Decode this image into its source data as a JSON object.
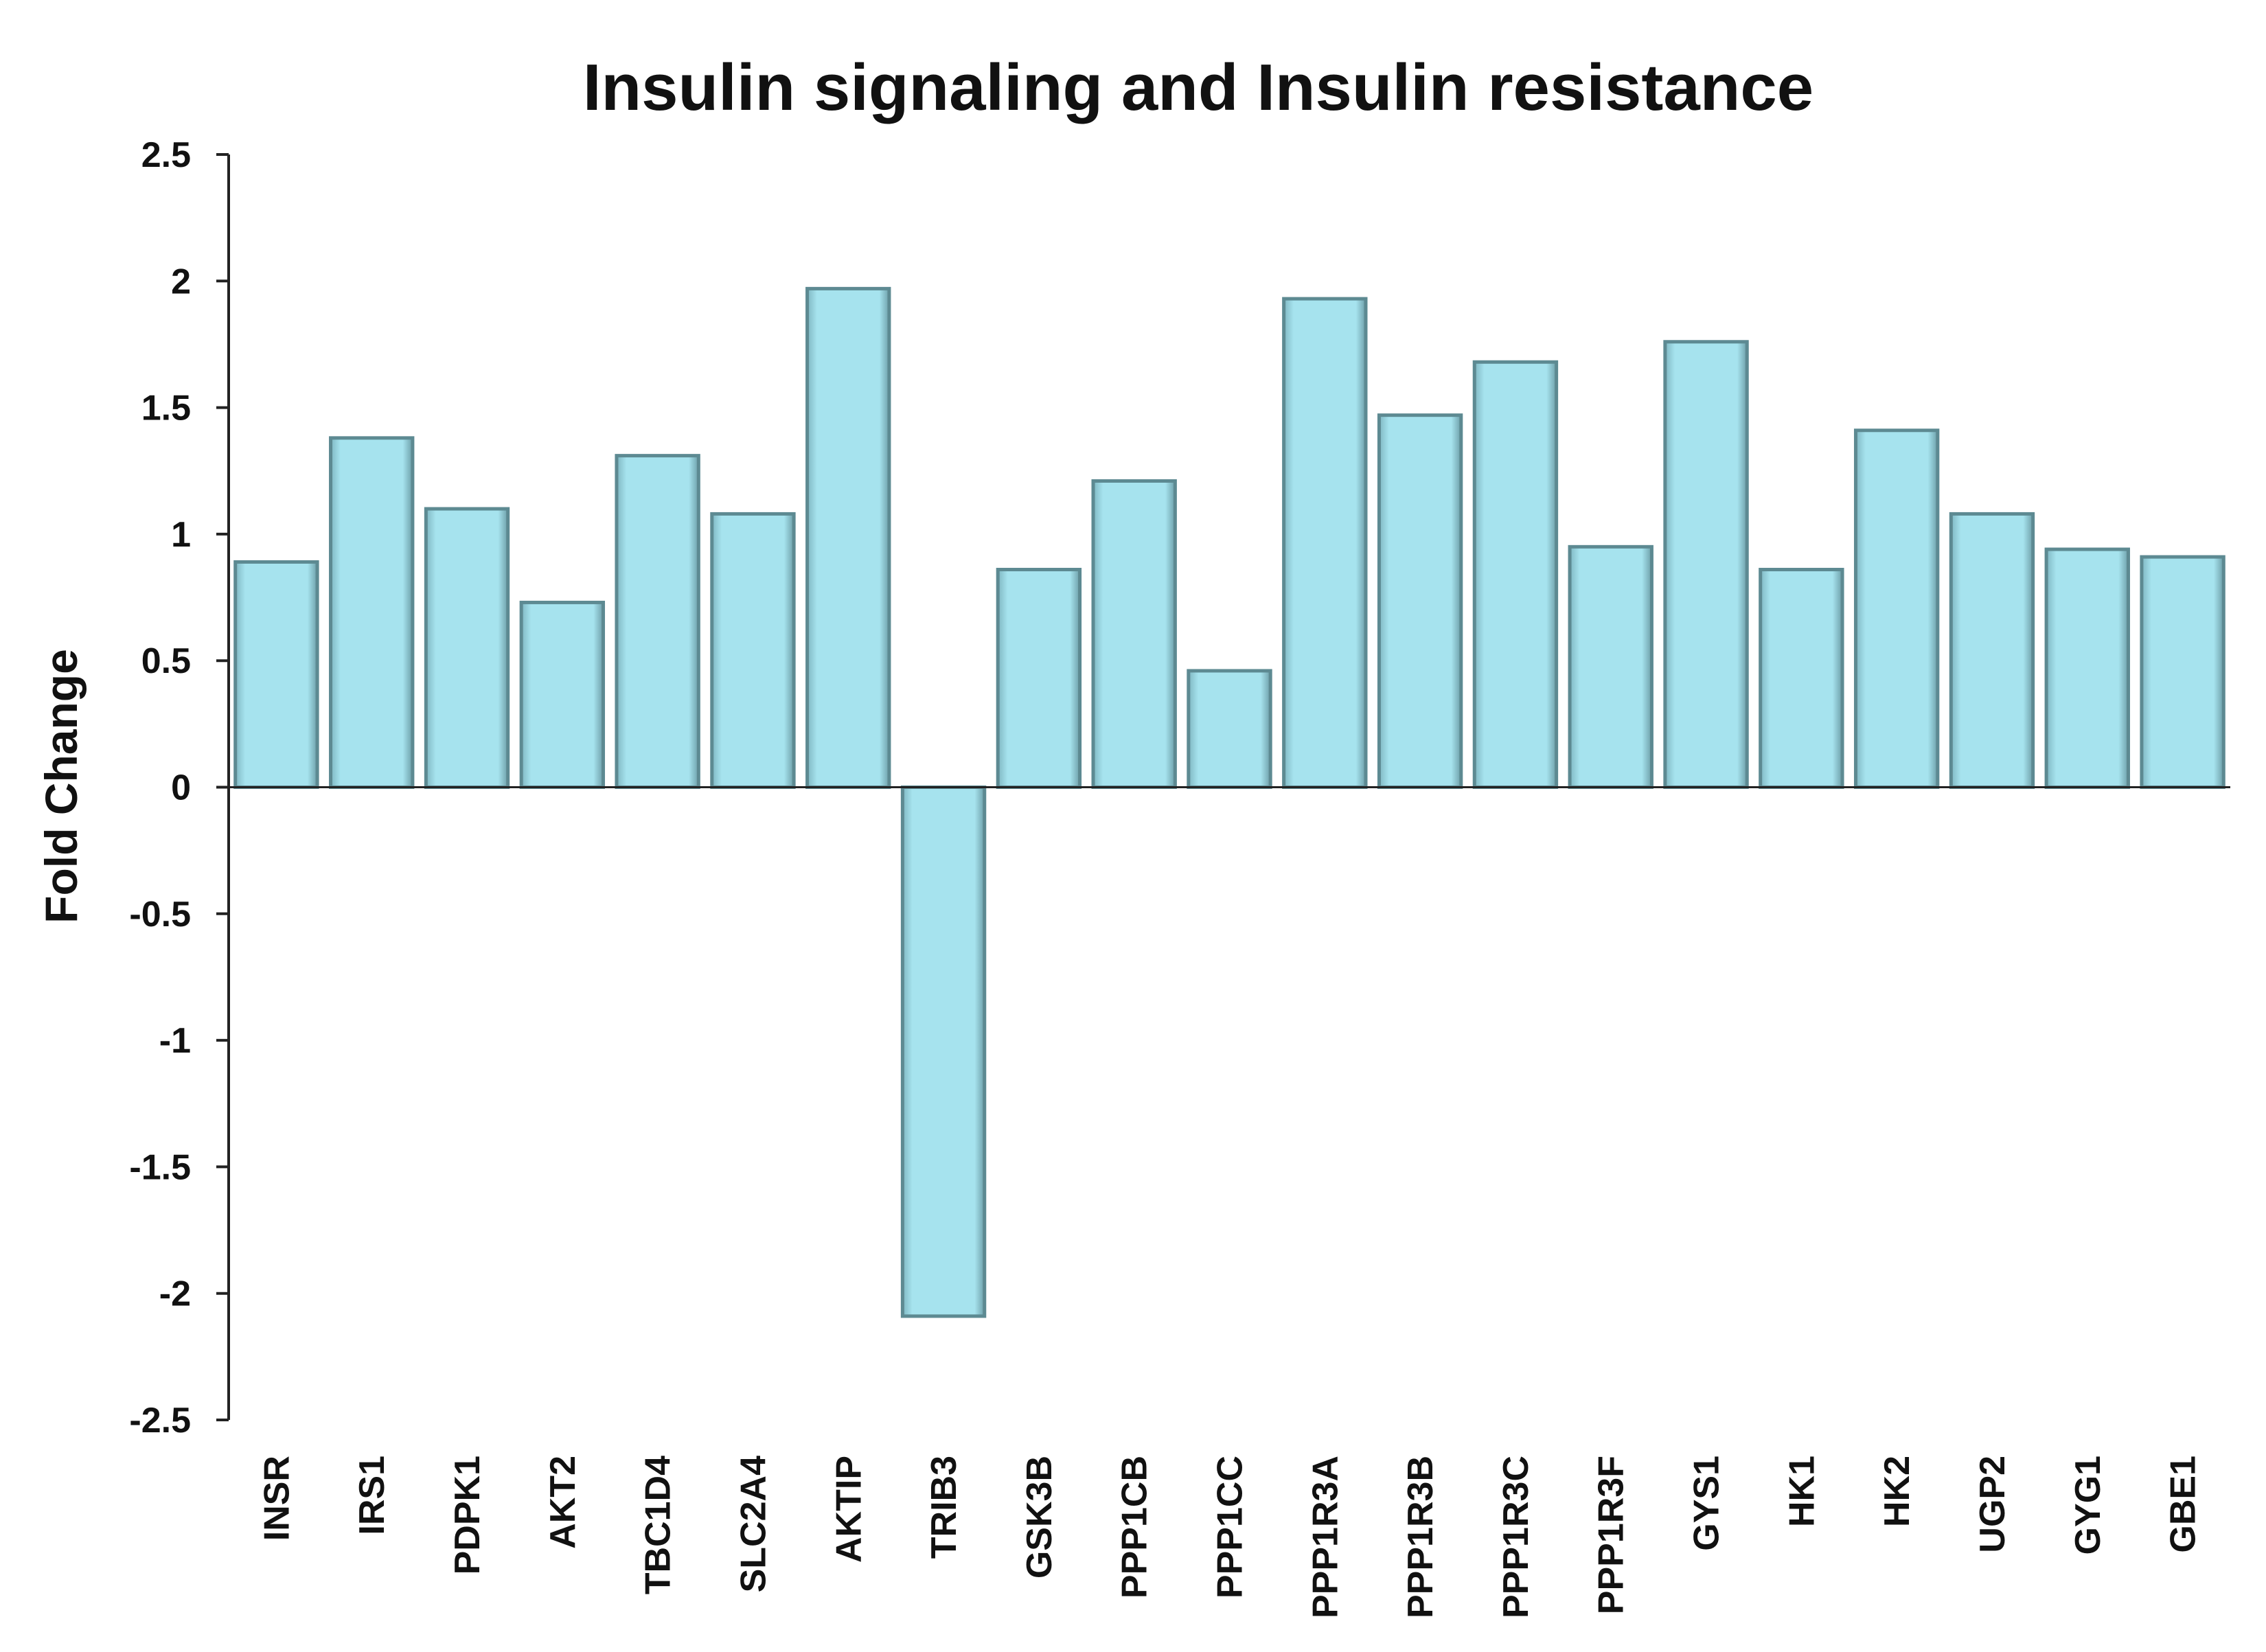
{
  "chart_data": {
    "type": "bar",
    "title": "Insulin signaling and Insulin resistance",
    "xlabel": "",
    "ylabel": "Fold Change",
    "ylim": [
      -2.5,
      2.5
    ],
    "yticks": [
      "2.5",
      "2",
      "1.5",
      "1",
      "0.5",
      "0",
      "-0.5",
      "-1",
      "-1.5",
      "-2",
      "-2.5"
    ],
    "ytick_values": [
      2.5,
      2,
      1.5,
      1,
      0.5,
      0,
      -0.5,
      -1,
      -1.5,
      -2,
      -2.5
    ],
    "grid": false,
    "categories": [
      "INSR",
      "IRS1",
      "PDPK1",
      "AKT2",
      "TBC1D4",
      "SLC2A4",
      "AKTIP",
      "TRIB3",
      "GSK3B",
      "PPP1CB",
      "PPP1CC",
      "PPP1R3A",
      "PPP1R3B",
      "PPP1R3C",
      "PPP1R3F",
      "GYS1",
      "HK1",
      "HK2",
      "UGP2",
      "GYG1",
      "GBE1"
    ],
    "values": [
      0.89,
      1.38,
      1.1,
      0.73,
      1.31,
      1.08,
      1.97,
      -2.09,
      0.86,
      1.21,
      0.46,
      1.93,
      1.47,
      1.68,
      0.95,
      1.76,
      0.86,
      1.41,
      1.08,
      0.94,
      0.91
    ],
    "colors": {
      "bar_fill": "#a6e3ee",
      "bar_edge": "#5d8a92",
      "axis": "#222222"
    }
  }
}
